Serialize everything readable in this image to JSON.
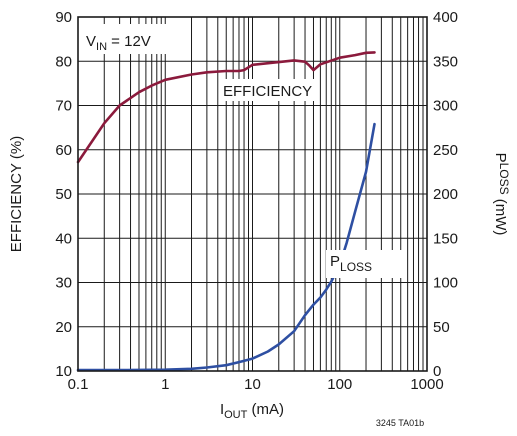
{
  "chart_data": {
    "type": "line",
    "x_scale": "log",
    "xlim": [
      0.1,
      1000
    ],
    "ylim": [
      10,
      90
    ],
    "y2lim": [
      0,
      400
    ],
    "grid": true,
    "xlabel": {
      "main": "I",
      "sub": "OUT",
      "rest": " (mA)"
    },
    "ylabel": "EFFICIENCY (%)",
    "y2label": {
      "main": "P",
      "sub": "LOSS",
      "rest": " (mW)"
    },
    "x_ticks": [
      {
        "value": 0.1,
        "label": "0.1"
      },
      {
        "value": 1,
        "label": "1"
      },
      {
        "value": 10,
        "label": "10"
      },
      {
        "value": 100,
        "label": "100"
      },
      {
        "value": 1000,
        "label": "1000"
      }
    ],
    "y_ticks": [
      {
        "value": 10,
        "label": "10"
      },
      {
        "value": 20,
        "label": "20"
      },
      {
        "value": 30,
        "label": "30"
      },
      {
        "value": 40,
        "label": "40"
      },
      {
        "value": 50,
        "label": "50"
      },
      {
        "value": 60,
        "label": "60"
      },
      {
        "value": 70,
        "label": "70"
      },
      {
        "value": 80,
        "label": "80"
      },
      {
        "value": 90,
        "label": "90"
      }
    ],
    "y2_ticks": [
      {
        "value": 0,
        "label": "0"
      },
      {
        "value": 50,
        "label": "50"
      },
      {
        "value": 100,
        "label": "100"
      },
      {
        "value": 150,
        "label": "150"
      },
      {
        "value": 200,
        "label": "200"
      },
      {
        "value": 250,
        "label": "250"
      },
      {
        "value": 300,
        "label": "300"
      },
      {
        "value": 350,
        "label": "350"
      },
      {
        "value": 400,
        "label": "400"
      }
    ],
    "series": [
      {
        "name": "EFFICIENCY",
        "axis": "left",
        "color": "#8b1a3c",
        "label": {
          "main": "EFFICIENCY",
          "sub": ""
        },
        "x": [
          0.1,
          0.2,
          0.3,
          0.5,
          0.7,
          1,
          2,
          3,
          5,
          7,
          8,
          10,
          20,
          30,
          40,
          45,
          50,
          60,
          100,
          150,
          200,
          250
        ],
        "y": [
          57.2,
          66,
          70,
          73,
          74.5,
          75.8,
          77,
          77.5,
          77.8,
          77.8,
          78,
          79.2,
          79.8,
          80.2,
          79.9,
          79,
          78,
          79.3,
          80.8,
          81.4,
          81.9,
          82
        ]
      },
      {
        "name": "PLOSS",
        "axis": "right",
        "color": "#2e4fa2",
        "label": {
          "main": "P",
          "sub": "LOSS"
        },
        "x": [
          0.1,
          0.3,
          0.5,
          1,
          2,
          3,
          5,
          7,
          10,
          15,
          20,
          30,
          40,
          50,
          60,
          70,
          80,
          100,
          120,
          150,
          200,
          250
        ],
        "y": [
          1,
          1,
          1.2,
          1.5,
          2.5,
          4,
          6.5,
          10,
          14,
          22,
          30,
          45,
          63,
          75,
          83,
          92,
          101,
          120,
          145,
          180,
          225,
          279
        ]
      }
    ],
    "annotations": [
      {
        "main": "V",
        "sub": "IN",
        "rest": " = 12V"
      }
    ],
    "footnote": "3245 TA01b"
  }
}
